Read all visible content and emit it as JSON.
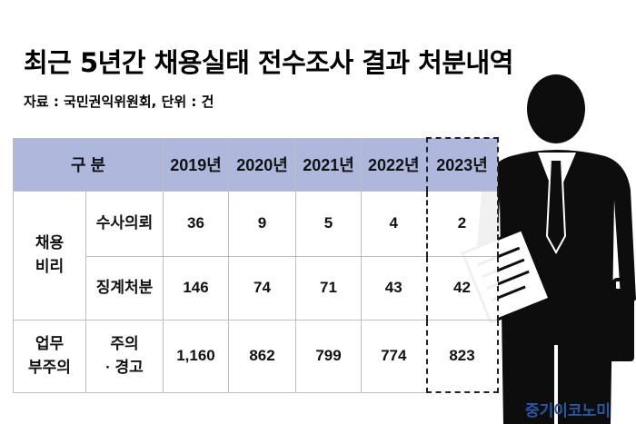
{
  "title": "최근 5년간 채용실태 전수조사 결과 처분내역",
  "source": "자료 : 국민권익위원회, 단위 : 건",
  "brand": "중기이코노미",
  "chart_data": {
    "type": "table",
    "header": {
      "category": "구 분",
      "years": [
        "2019년",
        "2020년",
        "2021년",
        "2022년",
        "2023년"
      ]
    },
    "rows": [
      {
        "group": "채용\n비리",
        "item": "수사의뢰",
        "values": [
          "36",
          "9",
          "5",
          "4",
          "2"
        ]
      },
      {
        "group": "",
        "item": "징계처분",
        "values": [
          "146",
          "74",
          "71",
          "43",
          "42"
        ]
      },
      {
        "group": "업무\n부주의",
        "item": "주의\n· 경고",
        "values": [
          "1,160",
          "862",
          "799",
          "774",
          "823"
        ]
      }
    ],
    "highlight_column": "2023년"
  }
}
